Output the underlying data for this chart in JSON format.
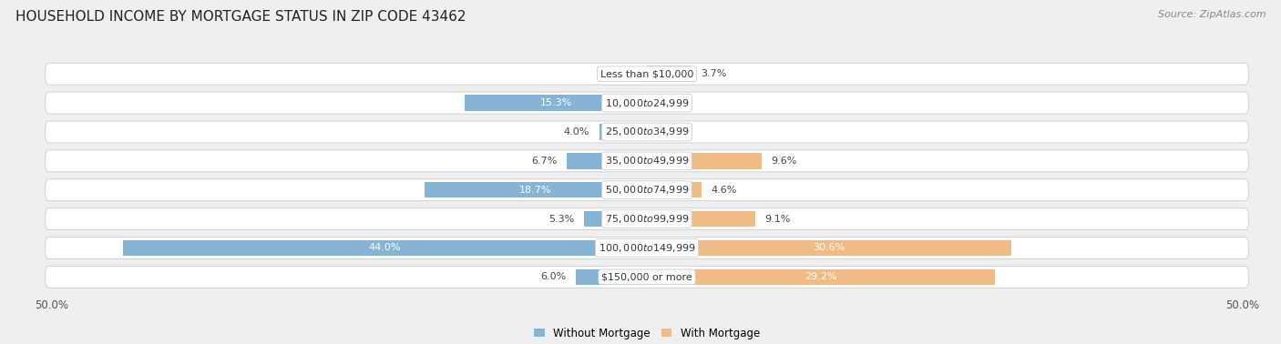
{
  "title": "HOUSEHOLD INCOME BY MORTGAGE STATUS IN ZIP CODE 43462",
  "source": "Source: ZipAtlas.com",
  "categories": [
    "Less than $10,000",
    "$10,000 to $24,999",
    "$25,000 to $34,999",
    "$35,000 to $49,999",
    "$50,000 to $74,999",
    "$75,000 to $99,999",
    "$100,000 to $149,999",
    "$150,000 or more"
  ],
  "without_mortgage": [
    0.0,
    15.3,
    4.0,
    6.7,
    18.7,
    5.3,
    44.0,
    6.0
  ],
  "with_mortgage": [
    3.7,
    0.0,
    0.0,
    9.6,
    4.6,
    9.1,
    30.6,
    29.2
  ],
  "color_without": "#85b4d4",
  "color_with": "#f0bc84",
  "xlim": 50.0,
  "background_color": "#efefef",
  "row_bg_color": "#ffffff",
  "row_border_color": "#cccccc",
  "title_fontsize": 11,
  "label_fontsize": 8,
  "tick_fontsize": 8.5,
  "legend_fontsize": 8.5,
  "source_fontsize": 8,
  "inside_label_threshold": 10,
  "inside_label_color": "white",
  "outside_label_color": "#444444",
  "category_label_color": "#333333"
}
